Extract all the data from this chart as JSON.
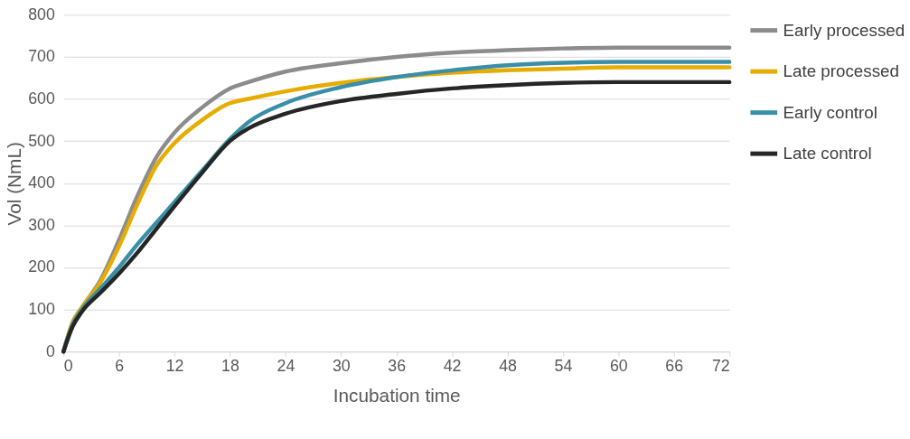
{
  "chart_data": {
    "type": "line",
    "xlabel": "Incubation time",
    "ylabel": "Vol (NmL)",
    "x": [
      0,
      1,
      2,
      4,
      6,
      8,
      10,
      12,
      15,
      18,
      20,
      24,
      30,
      36,
      42,
      48,
      54,
      60,
      72
    ],
    "series": [
      {
        "name": "Early processed",
        "color": "#8c8c8c",
        "values": [
          0,
          70,
          105,
          170,
          265,
          370,
          460,
          520,
          580,
          625,
          640,
          665,
          685,
          700,
          710,
          716,
          720,
          722,
          722
        ]
      },
      {
        "name": "Late processed",
        "color": "#e6ac00",
        "values": [
          0,
          70,
          105,
          165,
          250,
          350,
          440,
          495,
          550,
          590,
          600,
          618,
          638,
          652,
          662,
          668,
          672,
          675,
          675
        ]
      },
      {
        "name": "Early control",
        "color": "#3a8fa8",
        "values": [
          0,
          65,
          100,
          150,
          200,
          255,
          305,
          355,
          430,
          505,
          545,
          590,
          628,
          652,
          668,
          680,
          686,
          688,
          688
        ]
      },
      {
        "name": "Late control",
        "color": "#262626",
        "values": [
          0,
          60,
          95,
          140,
          185,
          235,
          290,
          345,
          425,
          500,
          530,
          565,
          595,
          612,
          625,
          633,
          638,
          640,
          640
        ]
      }
    ],
    "xlim": [
      0,
      72
    ],
    "xticks": [
      0,
      6,
      12,
      18,
      24,
      30,
      36,
      42,
      48,
      54,
      60,
      66,
      72
    ],
    "ylim": [
      0,
      800
    ],
    "yticks": [
      0,
      100,
      200,
      300,
      400,
      500,
      600,
      700,
      800
    ],
    "grid": "y",
    "legend": "right",
    "marker": "none",
    "line_style": "solid"
  }
}
